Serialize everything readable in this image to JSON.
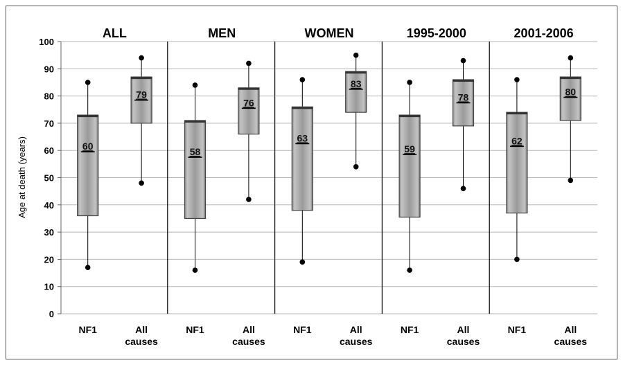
{
  "chart_data": {
    "type": "boxplot",
    "ylabel": "Age at death (years)",
    "ylim": [
      0,
      100
    ],
    "yticks": [
      0,
      10,
      20,
      30,
      40,
      50,
      60,
      70,
      80,
      90,
      100
    ],
    "grid": true,
    "groups": [
      {
        "title": "ALL",
        "boxes": [
          {
            "label": "NF1",
            "min": 17,
            "q1": 36,
            "median": 60,
            "q3": 73,
            "max": 85
          },
          {
            "label": "All causes",
            "min": 48,
            "q1": 70,
            "median": 79,
            "q3": 87,
            "max": 94
          }
        ]
      },
      {
        "title": "MEN",
        "boxes": [
          {
            "label": "NF1",
            "min": 16,
            "q1": 35,
            "median": 58,
            "q3": 71,
            "max": 84
          },
          {
            "label": "All causes",
            "min": 42,
            "q1": 66,
            "median": 76,
            "q3": 83,
            "max": 92
          }
        ]
      },
      {
        "title": "WOMEN",
        "boxes": [
          {
            "label": "NF1",
            "min": 19,
            "q1": 38,
            "median": 63,
            "q3": 76,
            "max": 86
          },
          {
            "label": "All causes",
            "min": 54,
            "q1": 74,
            "median": 83,
            "q3": 89,
            "max": 95
          }
        ]
      },
      {
        "title": "1995-2000",
        "boxes": [
          {
            "label": "NF1",
            "min": 16,
            "q1": 35.5,
            "median": 59,
            "q3": 73,
            "max": 85
          },
          {
            "label": "All causes",
            "min": 46,
            "q1": 69,
            "median": 78,
            "q3": 86,
            "max": 93
          }
        ]
      },
      {
        "title": "2001-2006",
        "boxes": [
          {
            "label": "NF1",
            "min": 20,
            "q1": 37,
            "median": 62,
            "q3": 74,
            "max": 86
          },
          {
            "label": "All causes",
            "min": 49,
            "q1": 71,
            "median": 80,
            "q3": 87,
            "max": 94
          }
        ]
      }
    ]
  }
}
